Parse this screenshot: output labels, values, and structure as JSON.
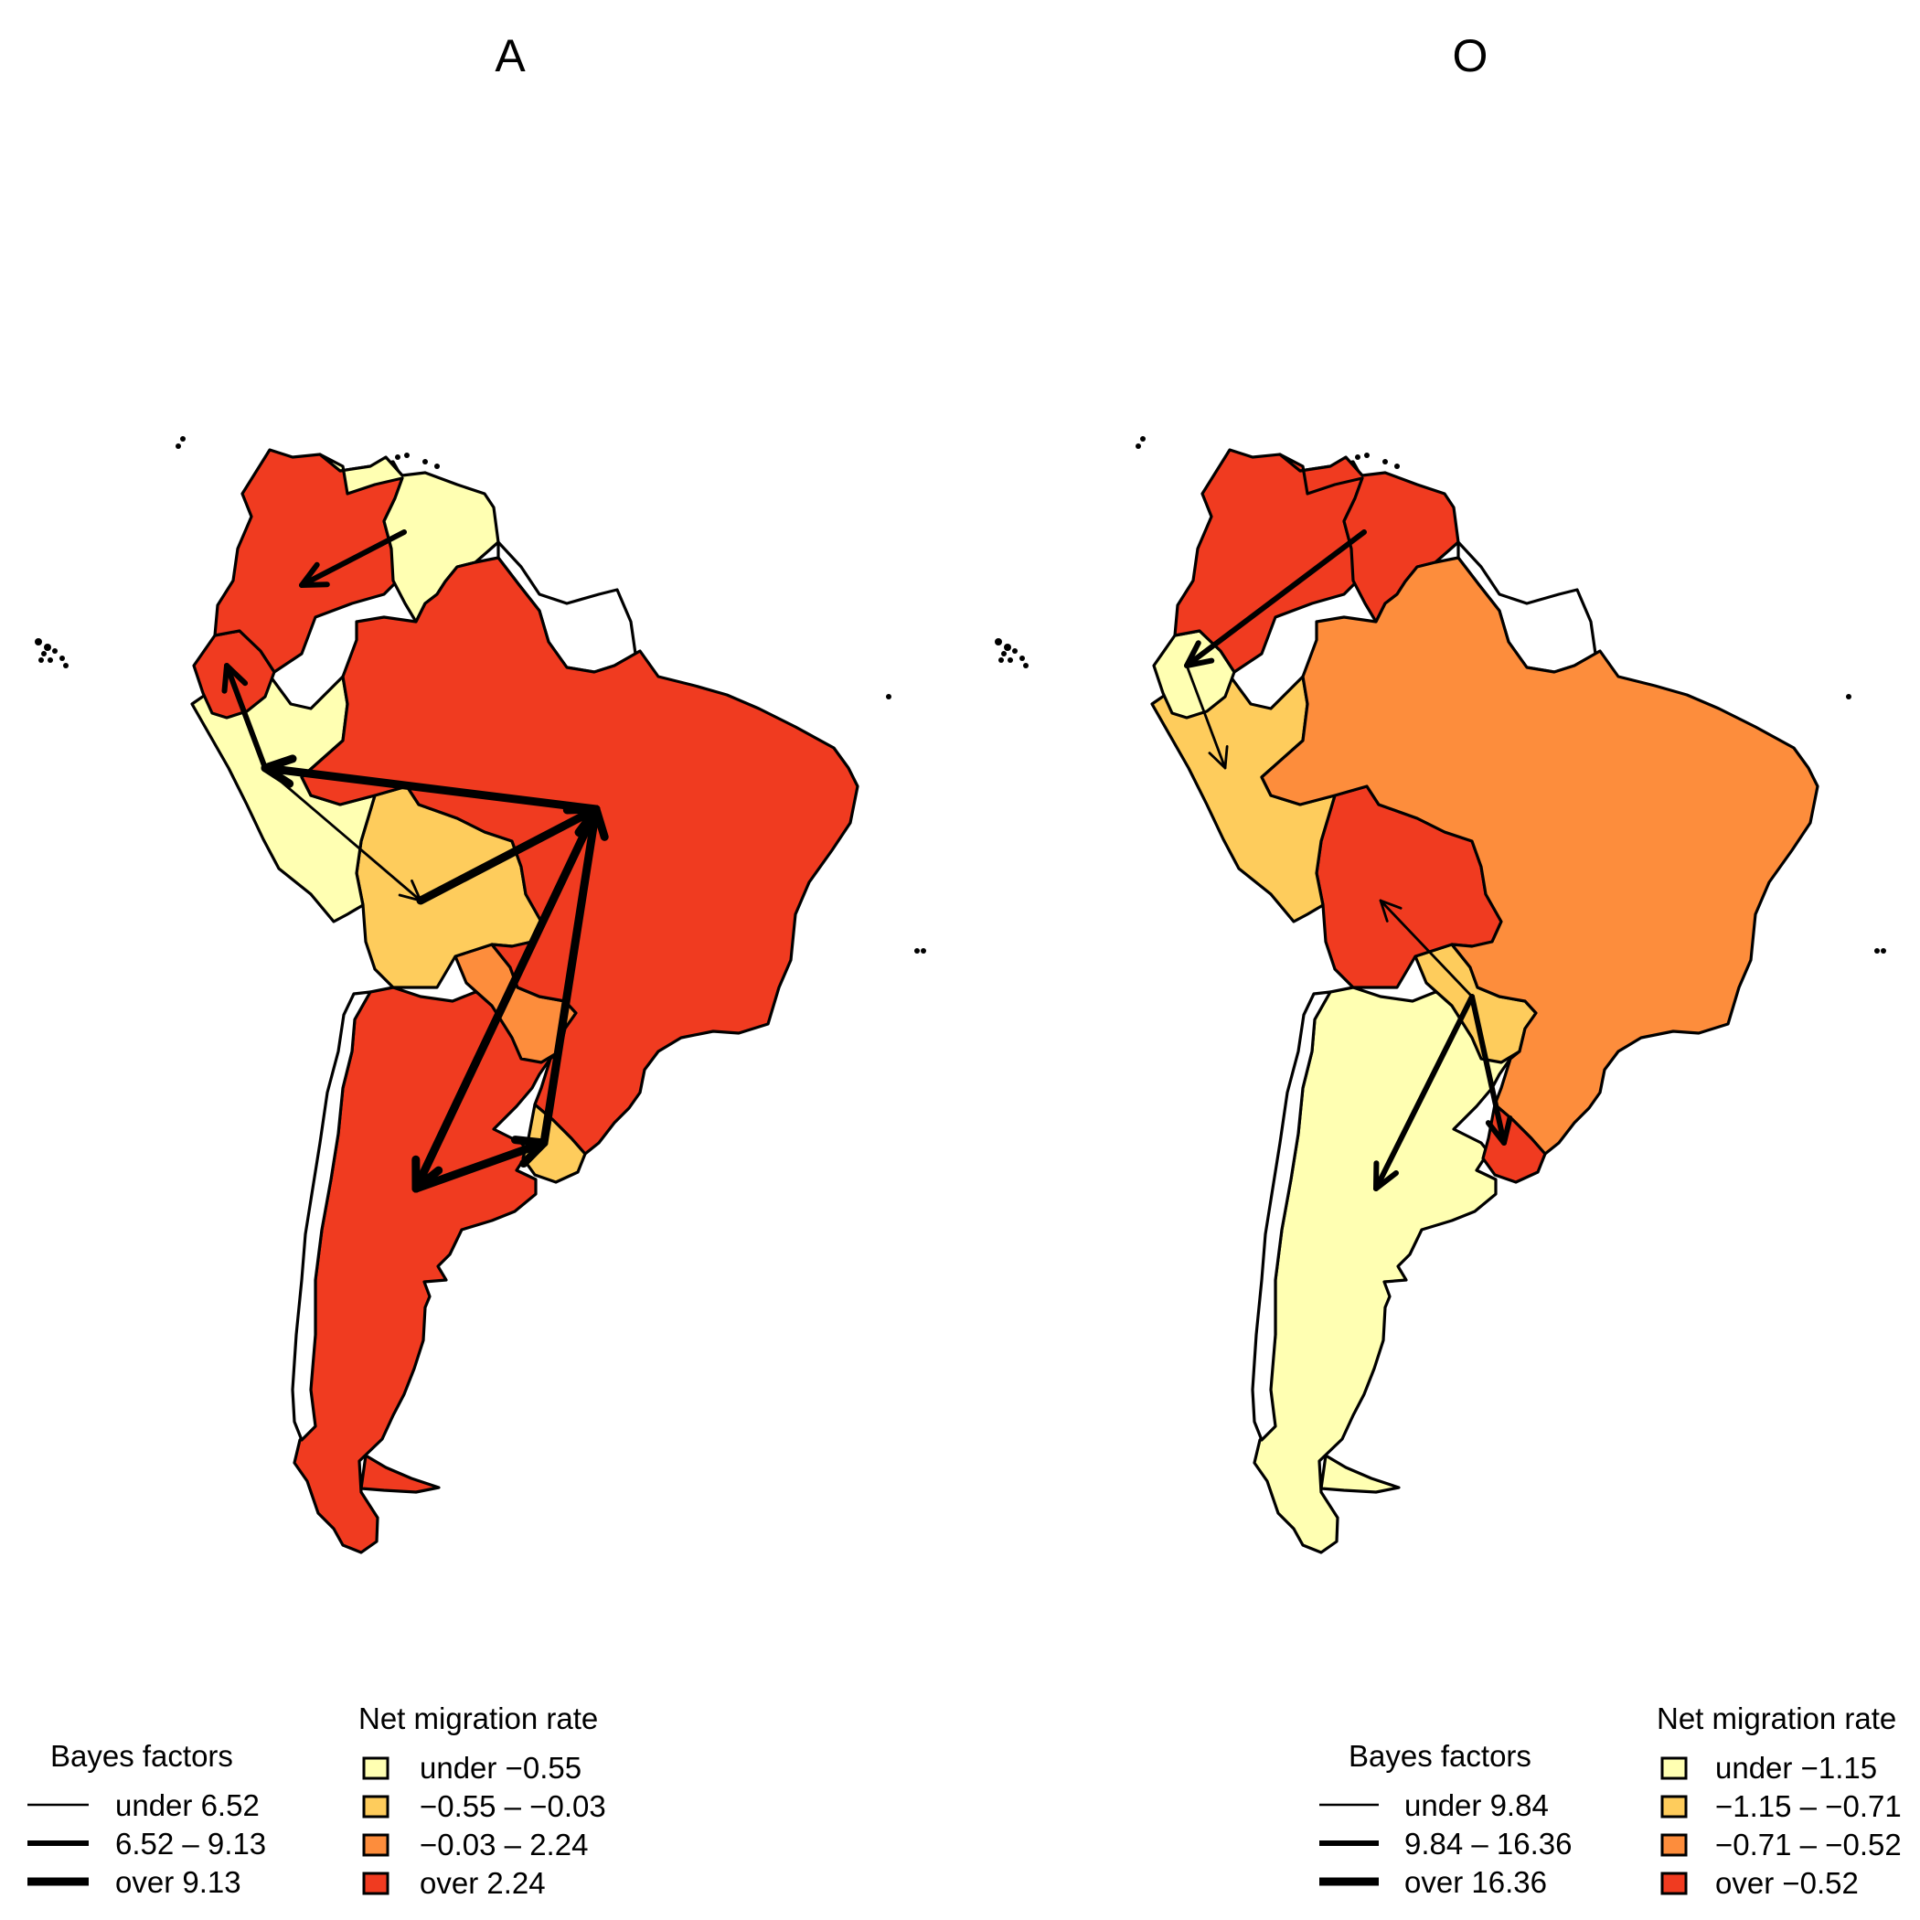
{
  "colors": {
    "class1": "#FFFFB2",
    "class2": "#FECC5C",
    "class3": "#FD8D3C",
    "class4": "#F03B20",
    "outline": "#000000"
  },
  "panels": [
    {
      "title": "A",
      "fills": {
        "colombia": "class4",
        "venezuela": "class1",
        "ecuador": "class4",
        "peru": "class1",
        "brazil": "class4",
        "bolivia": "class2",
        "paraguay": "class3",
        "argentina": "class4",
        "uruguay": "class2"
      },
      "arrows": [
        {
          "from": "Venezuela",
          "to": "Colombia",
          "level": 2
        },
        {
          "from": "Peru",
          "to": "Ecuador",
          "level": 2
        },
        {
          "from": "Brazil",
          "to": "Peru",
          "level": 3
        },
        {
          "from": "Peru",
          "to": "Bolivia",
          "level": 1
        },
        {
          "from": "Bolivia",
          "to": "Brazil",
          "level": 3
        },
        {
          "from": "Uruguay",
          "to": "Brazil",
          "level": 3
        },
        {
          "from": "Brazil",
          "to": "Argentina",
          "level": 3
        },
        {
          "from": "Argentina",
          "to": "Uruguay",
          "level": 3
        }
      ],
      "bayes_legend": {
        "title": "Bayes factors",
        "items": [
          "under 6.52",
          "6.52 – 9.13",
          "over 9.13"
        ]
      },
      "migration_legend": {
        "title": "Net migration rate",
        "items": [
          "under −0.55",
          "−0.55 – −0.03",
          "−0.03 – 2.24",
          "over 2.24"
        ]
      }
    },
    {
      "title": "O",
      "fills": {
        "colombia": "class4",
        "venezuela": "class4",
        "ecuador": "class1",
        "peru": "class2",
        "brazil": "class3",
        "bolivia": "class4",
        "paraguay": "class2",
        "argentina": "class1",
        "uruguay": "class4"
      },
      "arrows": [
        {
          "from": "Venezuela",
          "to": "Ecuador",
          "level": 2
        },
        {
          "from": "Ecuador",
          "to": "Peru",
          "level": 1
        },
        {
          "from": "Paraguay",
          "to": "Bolivia",
          "level": 1
        },
        {
          "from": "Paraguay",
          "to": "Argentina",
          "level": 2
        },
        {
          "from": "Paraguay",
          "to": "Uruguay",
          "level": 2
        }
      ],
      "bayes_legend": {
        "title": "Bayes factors",
        "items": [
          "under 9.84",
          "9.84 – 16.36",
          "over 16.36"
        ]
      },
      "migration_legend": {
        "title": "Net migration rate",
        "items": [
          "under −1.15",
          "−1.15 – −0.71",
          "−0.71 – −0.52",
          "over −0.52"
        ]
      }
    }
  ]
}
